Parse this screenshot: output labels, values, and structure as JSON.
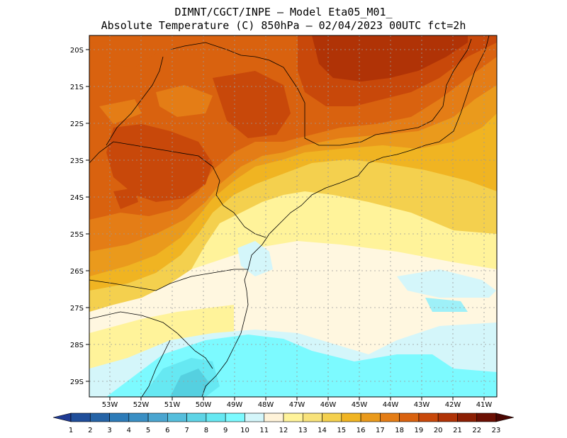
{
  "title_line1": "DIMNT/CGCT/INPE —  Model Eta05_M01_",
  "title_line2": "Absolute Temperature (C) 850hPa —  02/04/2023 00UTC fct=2h",
  "latitudes": [
    "20S",
    "21S",
    "22S",
    "23S",
    "24S",
    "25S",
    "26S",
    "27S",
    "28S",
    "29S"
  ],
  "longitudes": [
    "53W",
    "52W",
    "51W",
    "50W",
    "49W",
    "48W",
    "47W",
    "46W",
    "45W",
    "44W",
    "43W",
    "42W",
    "41W"
  ],
  "colorbar": {
    "labels": [
      "1",
      "2",
      "3",
      "4",
      "5",
      "6",
      "7",
      "8",
      "9",
      "10",
      "11",
      "12",
      "13",
      "14",
      "15",
      "16",
      "17",
      "18",
      "19",
      "20",
      "21",
      "22",
      "23"
    ],
    "colors": [
      "#1f3a93",
      "#1f4e9a",
      "#2563a6",
      "#2d7bb8",
      "#3a8fc4",
      "#4aa5d0",
      "#55bedc",
      "#5ed4e6",
      "#66e8f2",
      "#7cfaff",
      "#d4f6fa",
      "#fff3d9",
      "#fff39a",
      "#f8e27a",
      "#f4d04e",
      "#f0b422",
      "#ea9a1c",
      "#e47d16",
      "#d9620f",
      "#c8480a",
      "#b03306",
      "#8c1f04",
      "#6b0f03",
      "#4a0602"
    ]
  }
}
